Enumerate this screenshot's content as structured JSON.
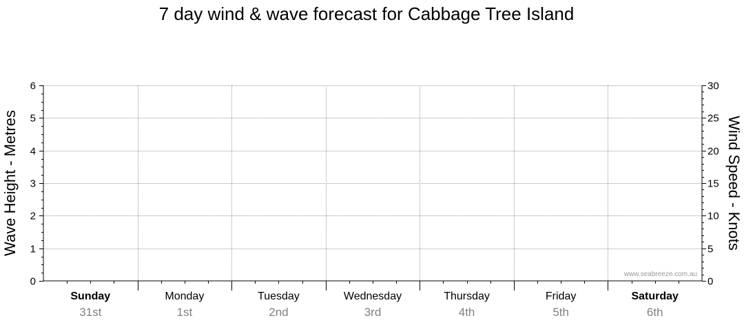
{
  "chart_data": {
    "type": "line",
    "title": "7 day wind & wave forecast for Cabbage Tree Island",
    "ylabel_left": "Wave Height - Metres",
    "ylabel_right": "Wind Speed - Knots",
    "ylim_left": [
      0,
      6
    ],
    "ylim_right": [
      0,
      30
    ],
    "yticks_left": [
      "0",
      "1",
      "2",
      "3",
      "4",
      "5",
      "6"
    ],
    "yticks_right": [
      "0",
      "5",
      "10",
      "15",
      "20",
      "25",
      "30"
    ],
    "grid": true,
    "days": [
      {
        "name": "Sunday",
        "date": "31st",
        "bold": true
      },
      {
        "name": "Monday",
        "date": "1st",
        "bold": false
      },
      {
        "name": "Tuesday",
        "date": "2nd",
        "bold": false
      },
      {
        "name": "Wednesday",
        "date": "3rd",
        "bold": false
      },
      {
        "name": "Thursday",
        "date": "4th",
        "bold": false
      },
      {
        "name": "Friday",
        "date": "5th",
        "bold": false
      },
      {
        "name": "Saturday",
        "date": "6th",
        "bold": true
      }
    ],
    "series": [],
    "watermark": "www.seabreeze.com.au"
  }
}
